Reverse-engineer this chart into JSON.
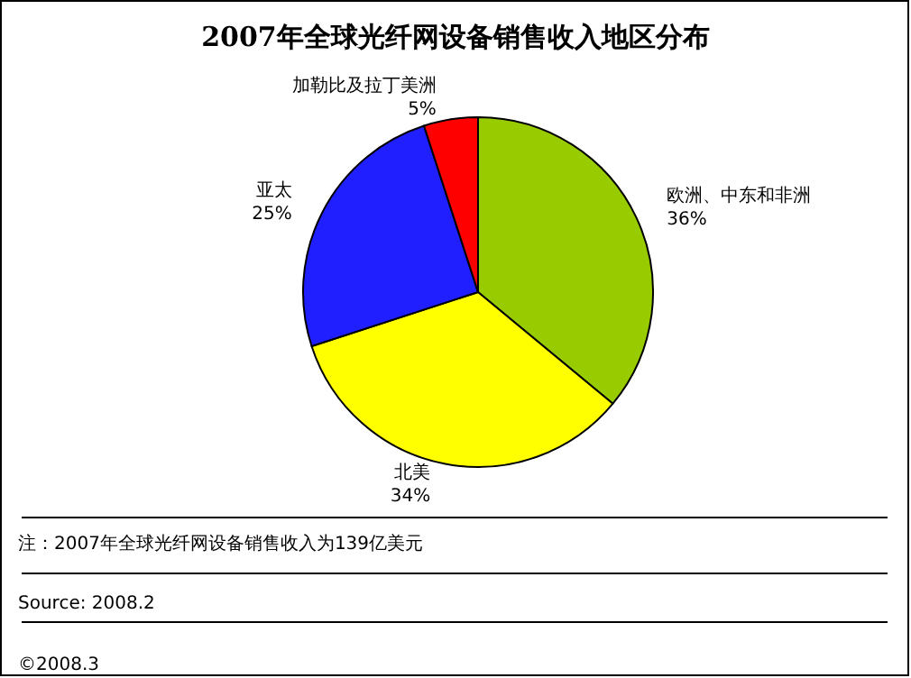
{
  "chart_data": {
    "type": "pie",
    "title": "2007年全球光纤网设备销售收入地区分布",
    "categories": [
      "欧洲、中东和非洲",
      "北美",
      "亚太",
      "加勒比及拉丁美洲"
    ],
    "values": [
      36,
      34,
      25,
      5
    ],
    "colors": [
      "#99cc00",
      "#ffff00",
      "#1f1fff",
      "#ff0000"
    ],
    "value_labels": [
      "36%",
      "34%",
      "25%",
      "5%"
    ],
    "legend": false,
    "annotations": [
      "注：2007年全球光纤网设备销售收入为139亿美元",
      "Source: 2008.2",
      "©2008.3"
    ]
  }
}
